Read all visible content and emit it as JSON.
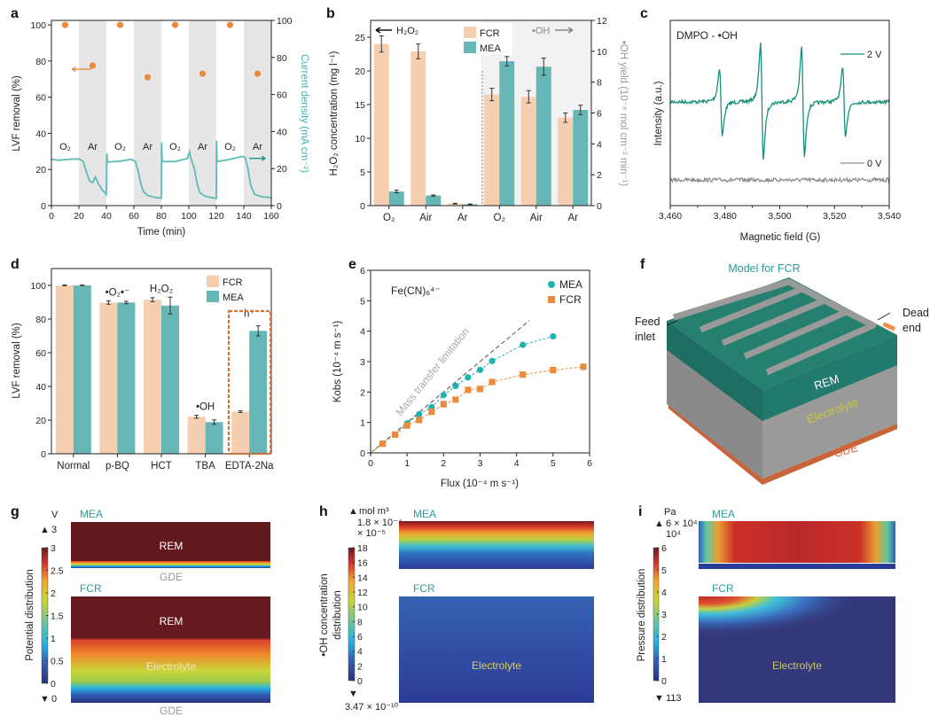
{
  "panel_letters": [
    "a",
    "b",
    "c",
    "d",
    "e",
    "f",
    "g",
    "h",
    "i"
  ],
  "colors": {
    "FCR": "#f5cfb0",
    "MEA": "#66b7b6",
    "orange": "#ec8a3c",
    "teal_line": "#5dbcb6",
    "epr_2V": "#17917b",
    "epr_0V": "#8c8c8c",
    "shade": "#e6e6e6",
    "box": "#d9732e"
  },
  "chart_data": [
    {
      "panel": "a",
      "type": "scatter+line",
      "xlabel": "Time (min)",
      "ylabel": "LVF removal (%)",
      "ylabel_right": "Current density (mA cm⁻²)",
      "xlim": [
        0,
        160
      ],
      "ylim": [
        0,
        102.5
      ],
      "ylim_right": [
        0,
        100
      ],
      "xticks": [
        0,
        20,
        40,
        60,
        80,
        100,
        120,
        140,
        160
      ],
      "yticks": [
        0,
        20,
        40,
        60,
        80,
        100
      ],
      "yticks_right": [
        0,
        20,
        40,
        60,
        80,
        100
      ],
      "shaded_intervals": [
        [
          20,
          40
        ],
        [
          60,
          80
        ],
        [
          100,
          120
        ],
        [
          140,
          160
        ]
      ],
      "phase_labels": [
        {
          "label": "O₂",
          "x": 10
        },
        {
          "label": "Ar",
          "x": 30
        },
        {
          "label": "O₂",
          "x": 50
        },
        {
          "label": "Ar",
          "x": 70
        },
        {
          "label": "O₂",
          "x": 90
        },
        {
          "label": "Ar",
          "x": 110
        },
        {
          "label": "O₂",
          "x": 130
        },
        {
          "label": "Ar",
          "x": 150
        }
      ],
      "series": [
        {
          "axis": "left",
          "marker": "circle",
          "x": [
            10,
            30,
            50,
            70,
            90,
            110,
            130,
            150
          ],
          "y": [
            100,
            77.5,
            100,
            71,
            100,
            73,
            100,
            73
          ]
        },
        {
          "axis": "right",
          "marker": "line",
          "points": [
            [
              0,
              25
            ],
            [
              5,
              24.5
            ],
            [
              12,
              25
            ],
            [
              20,
              25.2
            ],
            [
              23,
              24
            ],
            [
              26,
              17
            ],
            [
              28,
              13
            ],
            [
              30,
              12.5
            ],
            [
              32,
              15.5
            ],
            [
              34,
              12
            ],
            [
              37,
              8.5
            ],
            [
              40,
              6
            ],
            [
              40.2,
              22.5
            ],
            [
              40.4,
              28
            ],
            [
              40.8,
              23.5
            ],
            [
              50,
              24
            ],
            [
              58,
              25
            ],
            [
              61,
              24
            ],
            [
              63,
              19
            ],
            [
              65,
              12
            ],
            [
              67,
              7.5
            ],
            [
              70,
              5.5
            ],
            [
              75,
              4.5
            ],
            [
              80,
              4
            ],
            [
              80.2,
              34
            ],
            [
              80.6,
              23.8
            ],
            [
              90,
              23.8
            ],
            [
              99,
              25.5
            ],
            [
              100.5,
              29
            ],
            [
              101.5,
              25.5
            ],
            [
              104,
              20
            ],
            [
              106,
              12
            ],
            [
              108,
              7
            ],
            [
              112,
              5
            ],
            [
              120,
              3.8
            ],
            [
              120.2,
              35
            ],
            [
              120.6,
              23.8
            ],
            [
              130,
              25
            ],
            [
              139,
              26.6
            ],
            [
              141,
              26
            ],
            [
              143,
              20
            ],
            [
              145,
              11
            ],
            [
              148,
              6
            ],
            [
              153,
              4.8
            ],
            [
              160,
              4.3
            ]
          ]
        }
      ]
    },
    {
      "panel": "b",
      "type": "bar",
      "categories": [
        "O₂",
        "Air",
        "Ar",
        "O₂",
        "Air",
        "Ar"
      ],
      "axis_per_category": [
        "left",
        "left",
        "left",
        "right",
        "right",
        "right"
      ],
      "ylabel": "H₂O₂ concentration (mg l⁻¹)",
      "ylabel_right": "•OH yield (10⁻⁸ mol cm⁻² min⁻¹)",
      "ylim": [
        0,
        27.5
      ],
      "ylim_right": [
        0,
        12
      ],
      "yticks": [
        0,
        5,
        10,
        15,
        20,
        25
      ],
      "yticks_right": [
        0,
        2,
        4,
        6,
        8,
        10,
        12
      ],
      "annotation_left": "H₂O₂",
      "annotation_right": "•OH",
      "legend": [
        "FCR",
        "MEA"
      ],
      "series": [
        {
          "name": "FCR",
          "values": [
            24.0,
            22.9,
            0.3,
            7.2,
            7.05,
            5.7
          ],
          "errors": [
            1.2,
            1.1,
            0.05,
            0.4,
            0.4,
            0.3
          ]
        },
        {
          "name": "MEA",
          "values": [
            2.1,
            1.5,
            0.2,
            9.35,
            9.0,
            6.2
          ],
          "errors": [
            0.2,
            0.08,
            0.05,
            0.3,
            0.55,
            0.3
          ]
        }
      ]
    },
    {
      "panel": "c",
      "type": "line",
      "xlabel": "Magnetic field (G)",
      "ylabel": "Intensity (a.u.)",
      "xlim": [
        3460,
        3540
      ],
      "xticks": [
        3460,
        3480,
        3500,
        3520,
        3540
      ],
      "xtick_labels": [
        "3,460",
        "3,480",
        "3,500",
        "3,520",
        "3,540"
      ],
      "annotation": "DMPO - •OH",
      "series": [
        {
          "name": "2 V",
          "peaks_G": [
            3478.5,
            3493.5,
            3508.5,
            3523.5
          ],
          "relative_amplitude": [
            1,
            1.7,
            1.6,
            1
          ]
        },
        {
          "name": "0 V",
          "peaks_G": [],
          "relative_amplitude": []
        }
      ]
    },
    {
      "panel": "d",
      "type": "bar",
      "categories": [
        "Normal",
        "p-BQ",
        "HCT",
        "TBA",
        "EDTA-2Na"
      ],
      "ylabel": "LVF removal (%)",
      "ylim": [
        0,
        110
      ],
      "yticks": [
        0,
        20,
        40,
        60,
        80,
        100
      ],
      "legend": [
        "FCR",
        "MEA"
      ],
      "annotations": [
        "",
        "•O₂•⁻",
        "H₂O₂",
        "•OH",
        "h⁺"
      ],
      "highlighted_category": "EDTA-2Na",
      "series": [
        {
          "name": "FCR",
          "values": [
            100,
            89.8,
            91.5,
            22.0,
            25.0
          ],
          "errors": [
            0.2,
            1.0,
            1.2,
            0.8,
            0.5
          ]
        },
        {
          "name": "MEA",
          "values": [
            100,
            89.8,
            88.0,
            18.8,
            73.0
          ],
          "errors": [
            0.2,
            0.7,
            5.0,
            1.3,
            3.0
          ]
        }
      ]
    },
    {
      "panel": "e",
      "type": "scatter",
      "xlabel": "Flux (10⁻⁴ m s⁻¹)",
      "ylabel": "Kobs (10⁻⁴ m s⁻¹)",
      "xlim": [
        0,
        6
      ],
      "ylim": [
        0,
        6
      ],
      "xticks": [
        0,
        1,
        2,
        3,
        4,
        5,
        6
      ],
      "yticks": [
        0,
        1,
        2,
        3,
        4,
        5,
        6
      ],
      "annotation": "Fe(CN)₆⁴⁻",
      "reference_line": {
        "label": "Mass transfer limitation",
        "slope": 1,
        "x_end": 4.35
      },
      "series": [
        {
          "name": "MEA",
          "marker": "circle",
          "x": [
            0.33,
            0.67,
            1.0,
            1.33,
            1.67,
            2.0,
            2.33,
            2.67,
            3.0,
            3.33,
            4.17,
            5.0
          ],
          "y": [
            0.3,
            0.6,
            0.97,
            1.27,
            1.5,
            1.9,
            2.2,
            2.48,
            2.73,
            3.02,
            3.55,
            3.83
          ]
        },
        {
          "name": "FCR",
          "marker": "square",
          "x": [
            0.33,
            0.67,
            1.0,
            1.33,
            1.67,
            2.0,
            2.33,
            2.67,
            3.0,
            3.33,
            4.17,
            5.0,
            5.83
          ],
          "y": [
            0.3,
            0.6,
            0.9,
            1.08,
            1.35,
            1.6,
            1.75,
            2.07,
            2.1,
            2.33,
            2.57,
            2.72,
            2.83
          ]
        }
      ]
    },
    {
      "panel": "g",
      "type": "heatmap",
      "colorbar_label": "Potential distribution",
      "unit": "V",
      "max_label": "3",
      "min_label": "0",
      "colorbar_ticks": [
        "0",
        "0.5",
        "1",
        "1.5",
        "2",
        "2.5",
        "3"
      ],
      "colorbar_range": [
        0,
        3
      ],
      "top_title": "MEA",
      "bottom_title": "FCR",
      "regions": {
        "rem_top": "REM",
        "gde_top": "GDE",
        "rem_bottom": "REM",
        "electrolyte": "Electrolyte",
        "gde_bottom": "GDE"
      }
    },
    {
      "panel": "h",
      "type": "heatmap",
      "colorbar_label_1": "•OH concentration",
      "colorbar_label_2": "distribution",
      "unit": "mol m³",
      "max_label": "1.8 × 10⁻⁴",
      "scale_label": "× 10⁻⁵",
      "min_label": "3.47 × 10⁻¹⁰",
      "colorbar_ticks": [
        "0",
        "2",
        "4",
        "6",
        "8",
        "10",
        "12",
        "14",
        "16",
        "18"
      ],
      "colorbar_range": [
        0,
        18
      ],
      "top_title": "MEA",
      "bottom_title": "FCR",
      "regions": {
        "electrolyte": "Electrolyte"
      }
    },
    {
      "panel": "i",
      "type": "heatmap",
      "colorbar_label": "Pressure distribution",
      "unit": "Pa",
      "max_label": "6 × 10⁴",
      "scale_label": "10⁴",
      "min_label": "113",
      "colorbar_ticks": [
        "0",
        "1",
        "2",
        "3",
        "4",
        "5",
        "6"
      ],
      "colorbar_range": [
        0,
        6
      ],
      "top_title": "MEA",
      "bottom_title": "FCR",
      "regions": {
        "electrolyte": "Electrolyte"
      }
    }
  ],
  "diagram_f": {
    "title": "Model for FCR",
    "feed_1": "Feed",
    "feed_2": "inlet",
    "dead_1": "Dead",
    "dead_2": "end",
    "rem": "REM",
    "electrolyte": "Electrolyte",
    "gde": "GDE"
  },
  "markers": {
    "up": "▲",
    "down": "▼"
  }
}
